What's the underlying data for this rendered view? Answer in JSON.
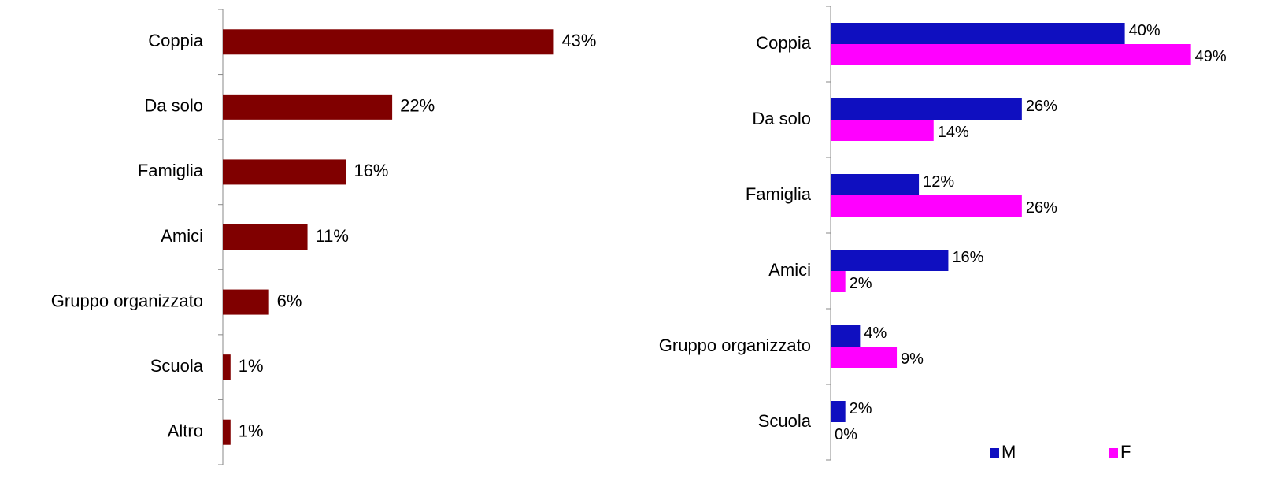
{
  "chart_data": [
    {
      "type": "bar",
      "orientation": "horizontal",
      "categories": [
        "Coppia",
        "Da solo",
        "Famiglia",
        "Amici",
        "Gruppo organizzato",
        "Scuola",
        "Altro"
      ],
      "values": [
        43,
        22,
        16,
        11,
        6,
        1,
        1
      ],
      "value_labels": [
        "43%",
        "22%",
        "16%",
        "11%",
        "6%",
        "1%",
        "1%"
      ],
      "color": "#800000",
      "xlim": [
        0,
        45
      ]
    },
    {
      "type": "bar",
      "orientation": "horizontal",
      "legend": "bottom",
      "categories": [
        "Coppia",
        "Da solo",
        "Famiglia",
        "Amici",
        "Gruppo organizzato",
        "Scuola"
      ],
      "series": [
        {
          "name": "M",
          "color": "#0f0fc0",
          "values": [
            40,
            26,
            12,
            16,
            4,
            2
          ],
          "value_labels": [
            "40%",
            "26%",
            "12%",
            "16%",
            "4%",
            "2%"
          ]
        },
        {
          "name": "F",
          "color": "#ff00ff",
          "values": [
            49,
            14,
            26,
            2,
            9,
            0
          ],
          "value_labels": [
            "49%",
            "14%",
            "26%",
            "2%",
            "9%",
            "0%"
          ]
        }
      ],
      "xlim": [
        0,
        50
      ]
    }
  ]
}
